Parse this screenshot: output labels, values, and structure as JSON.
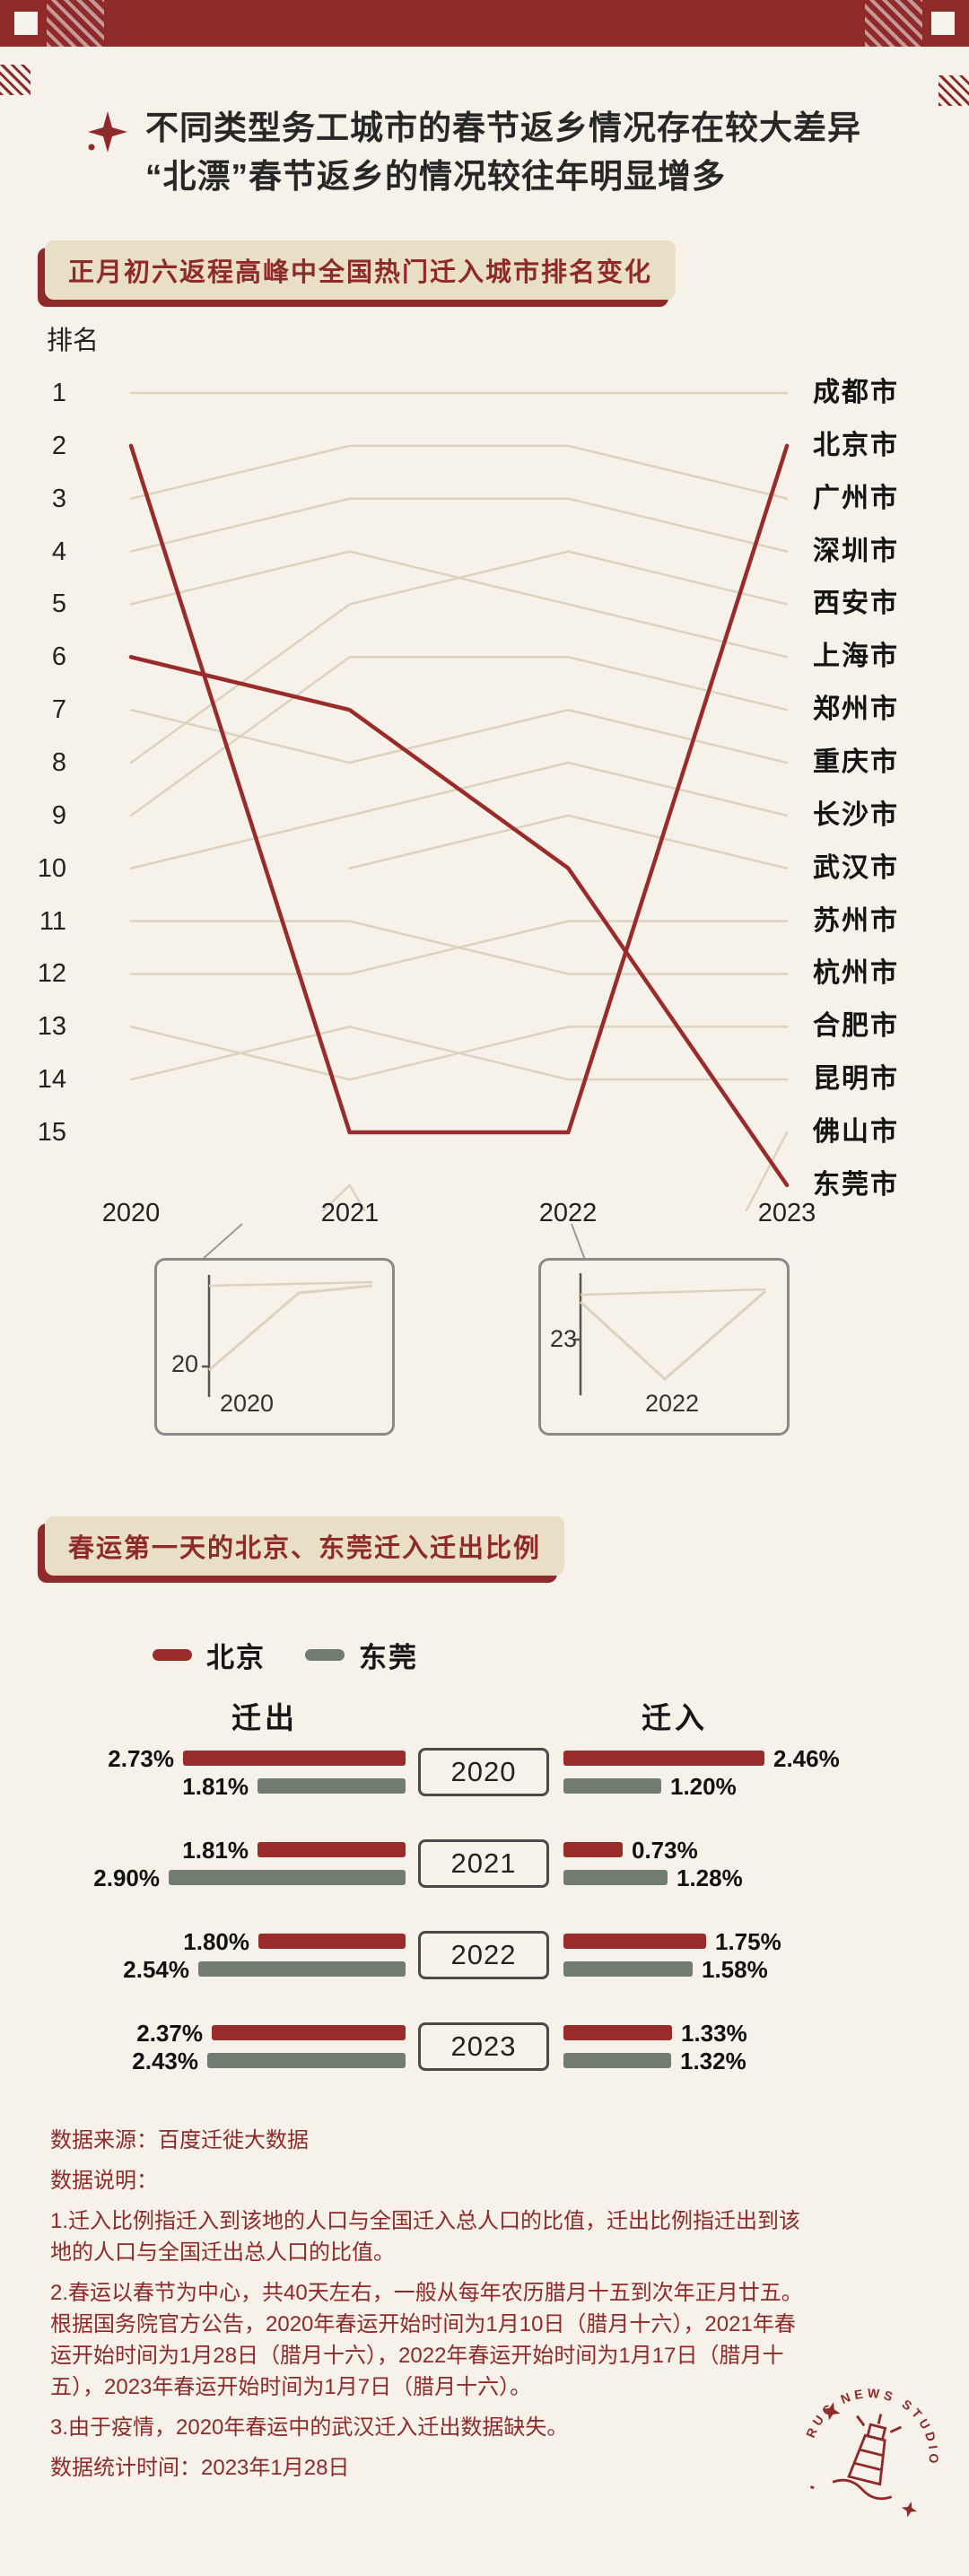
{
  "page": {
    "bg": "#f6f2ea",
    "accent": "#8e2a2a",
    "beige": "#e9dfc6",
    "black": "#1c1c1c"
  },
  "header": {
    "title_line1": "不同类型务工城市的春节返乡情况存在较大差异",
    "title_line2": "“北漂”春节返乡的情况较往年明显增多"
  },
  "chart_data": [
    {
      "type": "line",
      "variant": "bump-rank",
      "title": "正月初六返程高峰中全国热门迁入城市排名变化",
      "ylabel": "排名",
      "x": [
        "2020",
        "2021",
        "2022",
        "2023"
      ],
      "yticks": [
        "1",
        "2",
        "3",
        "4",
        "5",
        "6",
        "7",
        "8",
        "9",
        "10",
        "11",
        "12",
        "13",
        "14",
        "15"
      ],
      "ylim": [
        1,
        16
      ],
      "grid": false,
      "line_color": "#ddd2bf",
      "highlight_color": "#9a2b2b",
      "series": [
        {
          "name": "成都市",
          "ranks": [
            1,
            1,
            1,
            1
          ],
          "highlight": false
        },
        {
          "name": "北京市",
          "ranks": [
            2,
            15,
            15,
            2
          ],
          "highlight": true
        },
        {
          "name": "广州市",
          "ranks": [
            3,
            2,
            2,
            3
          ],
          "highlight": false
        },
        {
          "name": "深圳市",
          "ranks": [
            4,
            3,
            3,
            4
          ],
          "highlight": false
        },
        {
          "name": "西安市",
          "ranks": [
            8,
            5,
            4,
            5
          ],
          "highlight": false
        },
        {
          "name": "上海市",
          "ranks": [
            5,
            4,
            5,
            6
          ],
          "highlight": false
        },
        {
          "name": "郑州市",
          "ranks": [
            9,
            6,
            6,
            7
          ],
          "highlight": false
        },
        {
          "name": "重庆市",
          "ranks": [
            7,
            8,
            7,
            8
          ],
          "highlight": false
        },
        {
          "name": "长沙市",
          "ranks": [
            10,
            9,
            8,
            9
          ],
          "highlight": false
        },
        {
          "name": "武汉市",
          "ranks": [
            null,
            10,
            9,
            10
          ],
          "highlight": false
        },
        {
          "name": "苏州市",
          "ranks": [
            12,
            12,
            11,
            11
          ],
          "highlight": false
        },
        {
          "name": "杭州市",
          "ranks": [
            11,
            11,
            12,
            12
          ],
          "highlight": false
        },
        {
          "name": "合肥市",
          "ranks": [
            13,
            14,
            13,
            13
          ],
          "highlight": false
        },
        {
          "name": "昆明市",
          "ranks": [
            14,
            13,
            14,
            14
          ],
          "highlight": false
        },
        {
          "name": "佛山市",
          "ranks": [
            20,
            16,
            23,
            15
          ],
          "highlight": false
        },
        {
          "name": "东莞市",
          "ranks": [
            6,
            7,
            10,
            16
          ],
          "highlight": true
        }
      ],
      "insets": [
        {
          "tick": "20",
          "year": "2020"
        },
        {
          "tick": "23",
          "year": "2022"
        }
      ]
    },
    {
      "type": "bar",
      "variant": "diverging-paired",
      "title": "春运第一天的北京、东莞迁入迁出比例",
      "legend": [
        {
          "name": "北京",
          "color": "#9a2b2b"
        },
        {
          "name": "东莞",
          "color": "#6f7c6f"
        }
      ],
      "left_header": "迁出",
      "right_header": "迁入",
      "unit": "%",
      "rows": [
        {
          "year": "2020",
          "out": [
            2.73,
            1.81
          ],
          "in": [
            2.46,
            1.2
          ]
        },
        {
          "year": "2021",
          "out": [
            1.81,
            2.9
          ],
          "in": [
            0.73,
            1.28
          ]
        },
        {
          "year": "2022",
          "out": [
            1.8,
            2.54
          ],
          "in": [
            1.75,
            1.58
          ]
        },
        {
          "year": "2023",
          "out": [
            2.37,
            2.43
          ],
          "in": [
            1.33,
            1.32
          ]
        }
      ]
    }
  ],
  "notes": [
    "数据来源：百度迁徙大数据",
    "数据说明：",
    "1.迁入比例指迁入到该地的人口与全国迁入总人口的比值，迁出比例指迁出到该地的人口与全国迁出总人口的比值。",
    "2.春运以春节为中心，共40天左右，一般从每年农历腊月十五到次年正月廿五。根据国务院官方公告，2020年春运开始时间为1月10日（腊月十六），2021年春运开始时间为1月28日（腊月十六），2022年春运开始时间为1月17日（腊月十五），2023年春运开始时间为1月7日（腊月十六）。",
    "3.由于疫情，2020年春运中的武汉迁入迁出数据缺失。",
    "数据统计时间：2023年1月28日"
  ],
  "stamp": {
    "text": "RUC NEWS STUDIO"
  }
}
